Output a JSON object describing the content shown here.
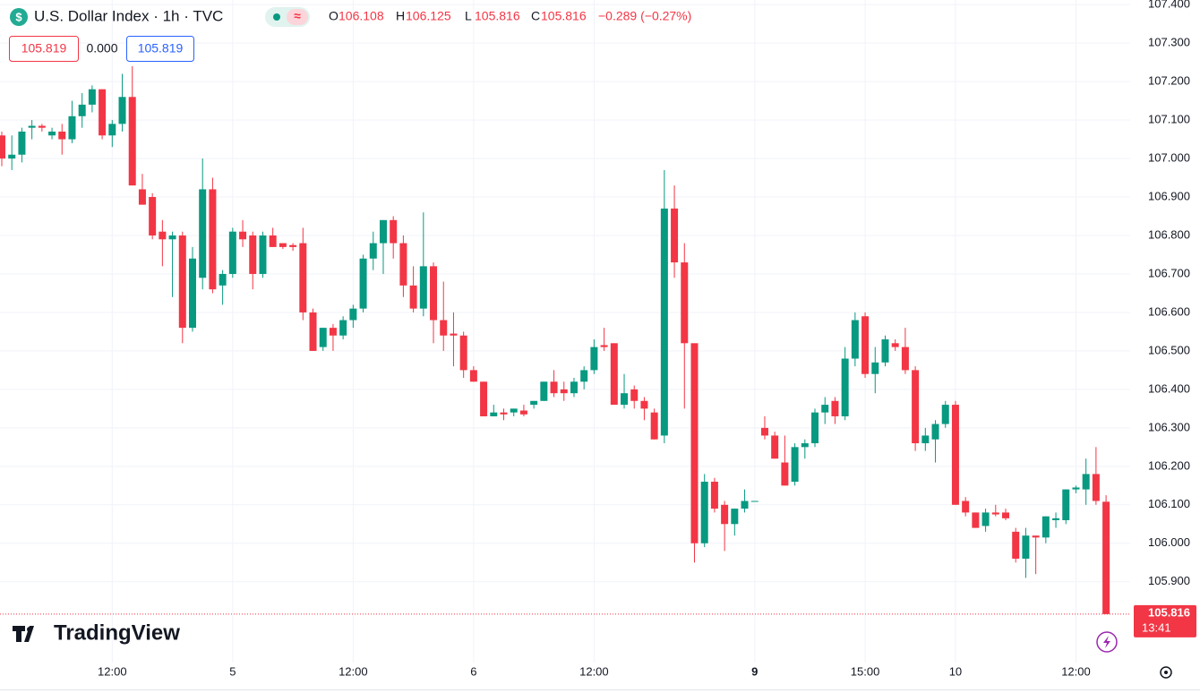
{
  "header": {
    "title": "U.S. Dollar Index · 1h · TVC",
    "ohlc": [
      [
        "O",
        "106.108"
      ],
      [
        "H",
        "106.125"
      ],
      [
        "L",
        "105.816"
      ],
      [
        "C",
        "105.816"
      ]
    ],
    "change": "−0.289 (−0.27%)",
    "bid": "105.819",
    "spread": "0.000",
    "ask": "105.819"
  },
  "logo": "TradingView",
  "chart_data": {
    "type": "candlestick",
    "up_color": "#089981",
    "down_color": "#f23645",
    "grid": true,
    "open": [
      107.06,
      107.0,
      107.01,
      107.08,
      107.085,
      107.06,
      107.07,
      107.05,
      107.11,
      107.14,
      107.18,
      107.06,
      107.09,
      107.16,
      106.92,
      106.9,
      106.81,
      106.79,
      106.8,
      106.56,
      106.69,
      106.92,
      106.67,
      106.7,
      106.81,
      106.8,
      106.7,
      106.8,
      106.78,
      106.775,
      106.78,
      106.6,
      106.51,
      106.56,
      106.54,
      106.58,
      106.61,
      106.74,
      106.78,
      106.84,
      106.78,
      106.67,
      106.61,
      106.72,
      106.58,
      106.545,
      106.54,
      106.45,
      106.42,
      106.33,
      106.34,
      106.34,
      106.345,
      106.36,
      106.37,
      106.42,
      106.4,
      106.39,
      106.42,
      106.45,
      106.515,
      106.52,
      106.36,
      106.4,
      106.37,
      106.34,
      106.28,
      106.87,
      106.73,
      106.52,
      106.0,
      106.16,
      106.1,
      106.05,
      106.09,
      106.11,
      106.3,
      106.28,
      106.21,
      106.16,
      106.25,
      106.26,
      106.34,
      106.37,
      106.33,
      106.48,
      106.59,
      106.44,
      106.47,
      106.52,
      106.51,
      106.45,
      106.26,
      106.27,
      106.31,
      106.36,
      106.11,
      106.08,
      106.045,
      106.08,
      106.08,
      106.03,
      105.96,
      106.02,
      106.015,
      106.06,
      106.06,
      106.14,
      106.14,
      106.18,
      106.108
    ],
    "high": [
      107.07,
      107.06,
      107.08,
      107.1,
      107.09,
      107.08,
      107.09,
      107.15,
      107.17,
      107.19,
      107.18,
      107.1,
      107.22,
      107.24,
      106.96,
      106.91,
      106.84,
      106.81,
      106.81,
      106.77,
      107.0,
      106.95,
      106.71,
      106.82,
      106.84,
      106.81,
      106.81,
      106.82,
      106.78,
      106.78,
      106.82,
      106.61,
      106.56,
      106.57,
      106.59,
      106.62,
      106.75,
      106.81,
      106.84,
      106.85,
      106.8,
      106.72,
      106.86,
      106.73,
      106.68,
      106.6,
      106.55,
      106.46,
      106.42,
      106.36,
      106.35,
      106.35,
      106.36,
      106.37,
      106.42,
      106.45,
      106.42,
      106.43,
      106.46,
      106.53,
      106.56,
      106.52,
      106.44,
      106.41,
      106.38,
      106.35,
      106.97,
      106.93,
      106.78,
      106.52,
      106.18,
      106.17,
      106.11,
      106.09,
      106.14,
      106.11,
      106.33,
      106.29,
      106.28,
      106.26,
      106.27,
      106.35,
      106.38,
      106.38,
      106.51,
      106.6,
      106.6,
      106.51,
      106.54,
      106.53,
      106.56,
      106.46,
      106.3,
      106.32,
      106.37,
      106.37,
      106.12,
      106.08,
      106.09,
      106.1,
      106.09,
      106.04,
      106.04,
      106.02,
      106.07,
      106.08,
      106.14,
      106.15,
      106.22,
      106.25,
      106.125
    ],
    "low": [
      106.98,
      106.97,
      106.99,
      107.05,
      107.07,
      107.05,
      107.01,
      107.04,
      107.08,
      107.12,
      107.05,
      107.03,
      107.07,
      106.93,
      106.88,
      106.79,
      106.72,
      106.64,
      106.52,
      106.55,
      106.66,
      106.65,
      106.62,
      106.69,
      106.77,
      106.66,
      106.69,
      106.77,
      106.765,
      106.76,
      106.58,
      106.5,
      106.5,
      106.5,
      106.53,
      106.56,
      106.6,
      106.71,
      106.7,
      106.74,
      106.64,
      106.6,
      106.59,
      106.52,
      106.5,
      106.46,
      106.43,
      106.42,
      106.33,
      106.33,
      106.32,
      106.33,
      106.33,
      106.35,
      106.37,
      106.38,
      106.37,
      106.38,
      106.4,
      106.44,
      106.5,
      106.36,
      106.35,
      106.35,
      106.32,
      106.27,
      106.26,
      106.69,
      106.35,
      105.95,
      105.99,
      106.08,
      105.98,
      106.02,
      106.08,
      106.11,
      106.27,
      106.22,
      106.15,
      106.15,
      106.22,
      106.25,
      106.31,
      106.31,
      106.32,
      106.46,
      106.43,
      106.39,
      106.46,
      106.5,
      106.44,
      106.24,
      106.24,
      106.21,
      106.3,
      106.1,
      106.07,
      106.04,
      106.03,
      106.07,
      106.06,
      105.95,
      105.91,
      105.92,
      106.0,
      106.04,
      106.05,
      106.13,
      106.1,
      106.1,
      105.816
    ],
    "close": [
      107.0,
      107.01,
      107.07,
      107.085,
      107.08,
      107.07,
      107.05,
      107.11,
      107.14,
      107.18,
      107.06,
      107.09,
      107.16,
      106.93,
      106.88,
      106.8,
      106.79,
      106.8,
      106.56,
      106.74,
      106.92,
      106.66,
      106.7,
      106.81,
      106.79,
      106.7,
      106.8,
      106.77,
      106.77,
      106.77,
      106.6,
      106.5,
      106.56,
      106.54,
      106.58,
      106.61,
      106.74,
      106.78,
      106.84,
      106.78,
      106.67,
      106.61,
      106.72,
      106.58,
      106.54,
      106.54,
      106.45,
      106.42,
      106.33,
      106.34,
      106.335,
      106.35,
      106.335,
      106.37,
      106.42,
      106.39,
      106.39,
      106.42,
      106.45,
      106.51,
      106.51,
      106.36,
      106.39,
      106.37,
      106.35,
      106.27,
      106.87,
      106.73,
      106.52,
      106.0,
      106.16,
      106.09,
      106.05,
      106.09,
      106.11,
      106.11,
      106.28,
      106.22,
      106.15,
      106.25,
      106.26,
      106.34,
      106.36,
      106.33,
      106.48,
      106.58,
      106.44,
      106.47,
      106.53,
      106.51,
      106.45,
      106.26,
      106.28,
      106.31,
      106.36,
      106.1,
      106.08,
      106.04,
      106.08,
      106.075,
      106.065,
      105.96,
      106.02,
      106.015,
      106.07,
      106.065,
      106.14,
      106.145,
      106.18,
      106.11,
      105.816
    ],
    "ylim": [
      105.69,
      107.412
    ],
    "yticks": [
      {
        "value": 105.9,
        "label": "105.900"
      },
      {
        "value": 106.0,
        "label": "106.000"
      },
      {
        "value": 106.1,
        "label": "106.100"
      },
      {
        "value": 106.2,
        "label": "106.200"
      },
      {
        "value": 106.3,
        "label": "106.300"
      },
      {
        "value": 106.4,
        "label": "106.400"
      },
      {
        "value": 106.5,
        "label": "106.500"
      },
      {
        "value": 106.6,
        "label": "106.600"
      },
      {
        "value": 106.7,
        "label": "106.700"
      },
      {
        "value": 106.8,
        "label": "106.800"
      },
      {
        "value": 106.9,
        "label": "106.900"
      },
      {
        "value": 107.0,
        "label": "107.000"
      },
      {
        "value": 107.1,
        "label": "107.100"
      },
      {
        "value": 107.2,
        "label": "107.200"
      },
      {
        "value": 107.3,
        "label": "107.300"
      },
      {
        "value": 107.4,
        "label": "107.400"
      }
    ],
    "xticks": [
      {
        "value": 11,
        "label": "12:00"
      },
      {
        "value": 23,
        "label": "5"
      },
      {
        "value": 35,
        "label": "12:00"
      },
      {
        "value": 47,
        "label": "6"
      },
      {
        "value": 59,
        "label": "12:00"
      },
      {
        "value": 75,
        "label": "9"
      },
      {
        "value": 86,
        "label": "15:00"
      },
      {
        "value": 95,
        "label": "10"
      },
      {
        "value": 107,
        "label": "12:00"
      }
    ],
    "price_tag": {
      "price": "105.816",
      "countdown": "13:41"
    }
  }
}
